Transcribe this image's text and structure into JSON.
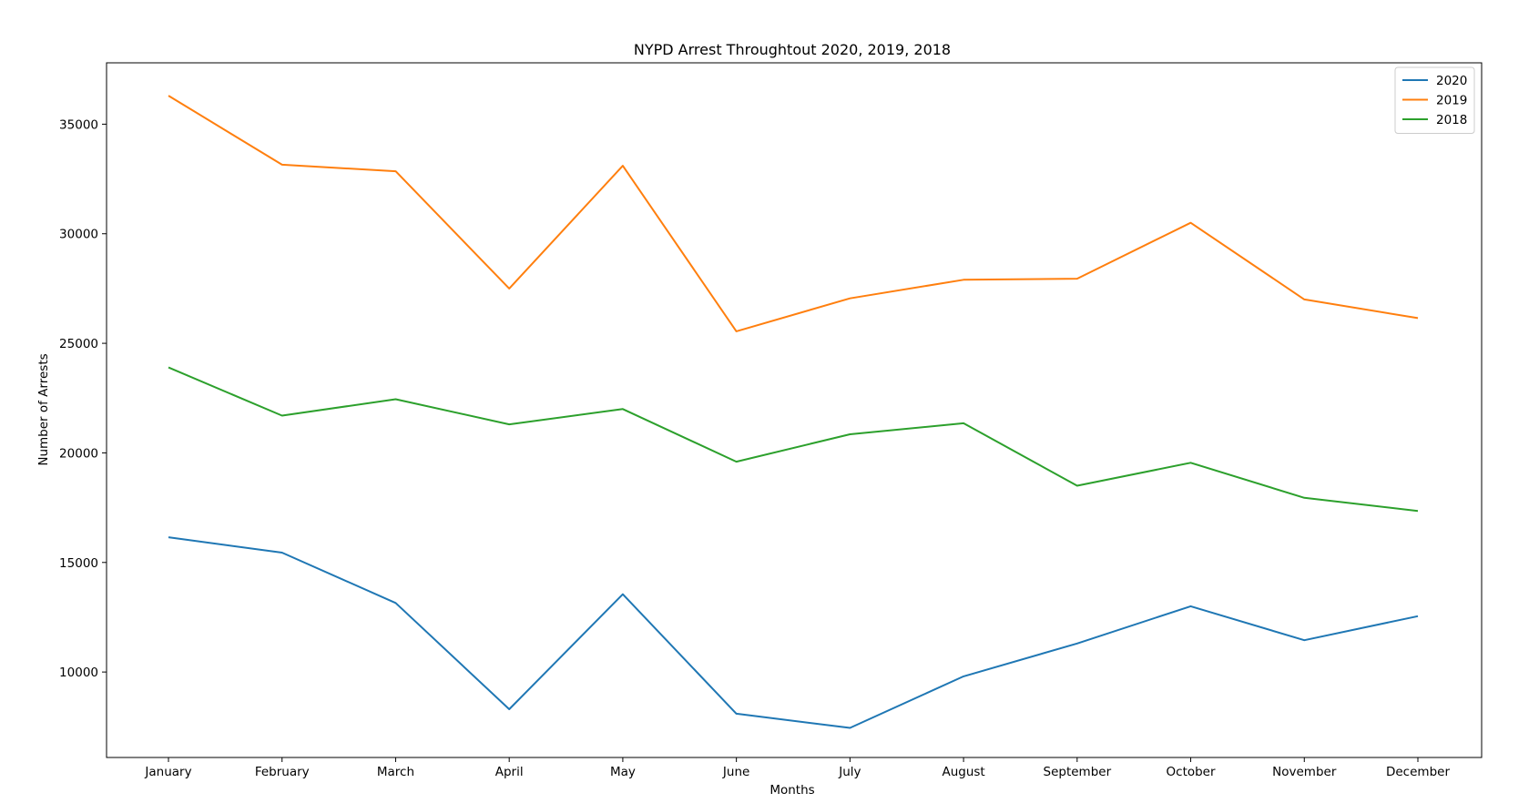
{
  "chart_data": {
    "type": "line",
    "title": "NYPD Arrest Throughtout 2020, 2019, 2018",
    "xlabel": "Months",
    "ylabel": "Number of Arrests",
    "categories": [
      "January",
      "February",
      "March",
      "April",
      "May",
      "June",
      "July",
      "August",
      "September",
      "October",
      "November",
      "December"
    ],
    "ylim": [
      6100,
      37800
    ],
    "yticks": [
      10000,
      15000,
      20000,
      25000,
      30000,
      35000
    ],
    "grid": false,
    "legend_position": "top-right",
    "series": [
      {
        "name": "2020",
        "color": "#1f77b4",
        "values": [
          16150,
          15450,
          13150,
          8300,
          13550,
          8100,
          7450,
          9800,
          11300,
          13000,
          11450,
          12550
        ]
      },
      {
        "name": "2019",
        "color": "#ff7f0e",
        "values": [
          36300,
          33150,
          32850,
          27500,
          33100,
          25550,
          27050,
          27900,
          27950,
          30500,
          27000,
          26150
        ]
      },
      {
        "name": "2018",
        "color": "#2ca02c",
        "values": [
          23900,
          21700,
          22450,
          21300,
          22000,
          19600,
          20850,
          21350,
          18500,
          19550,
          17950,
          17350
        ]
      }
    ]
  }
}
